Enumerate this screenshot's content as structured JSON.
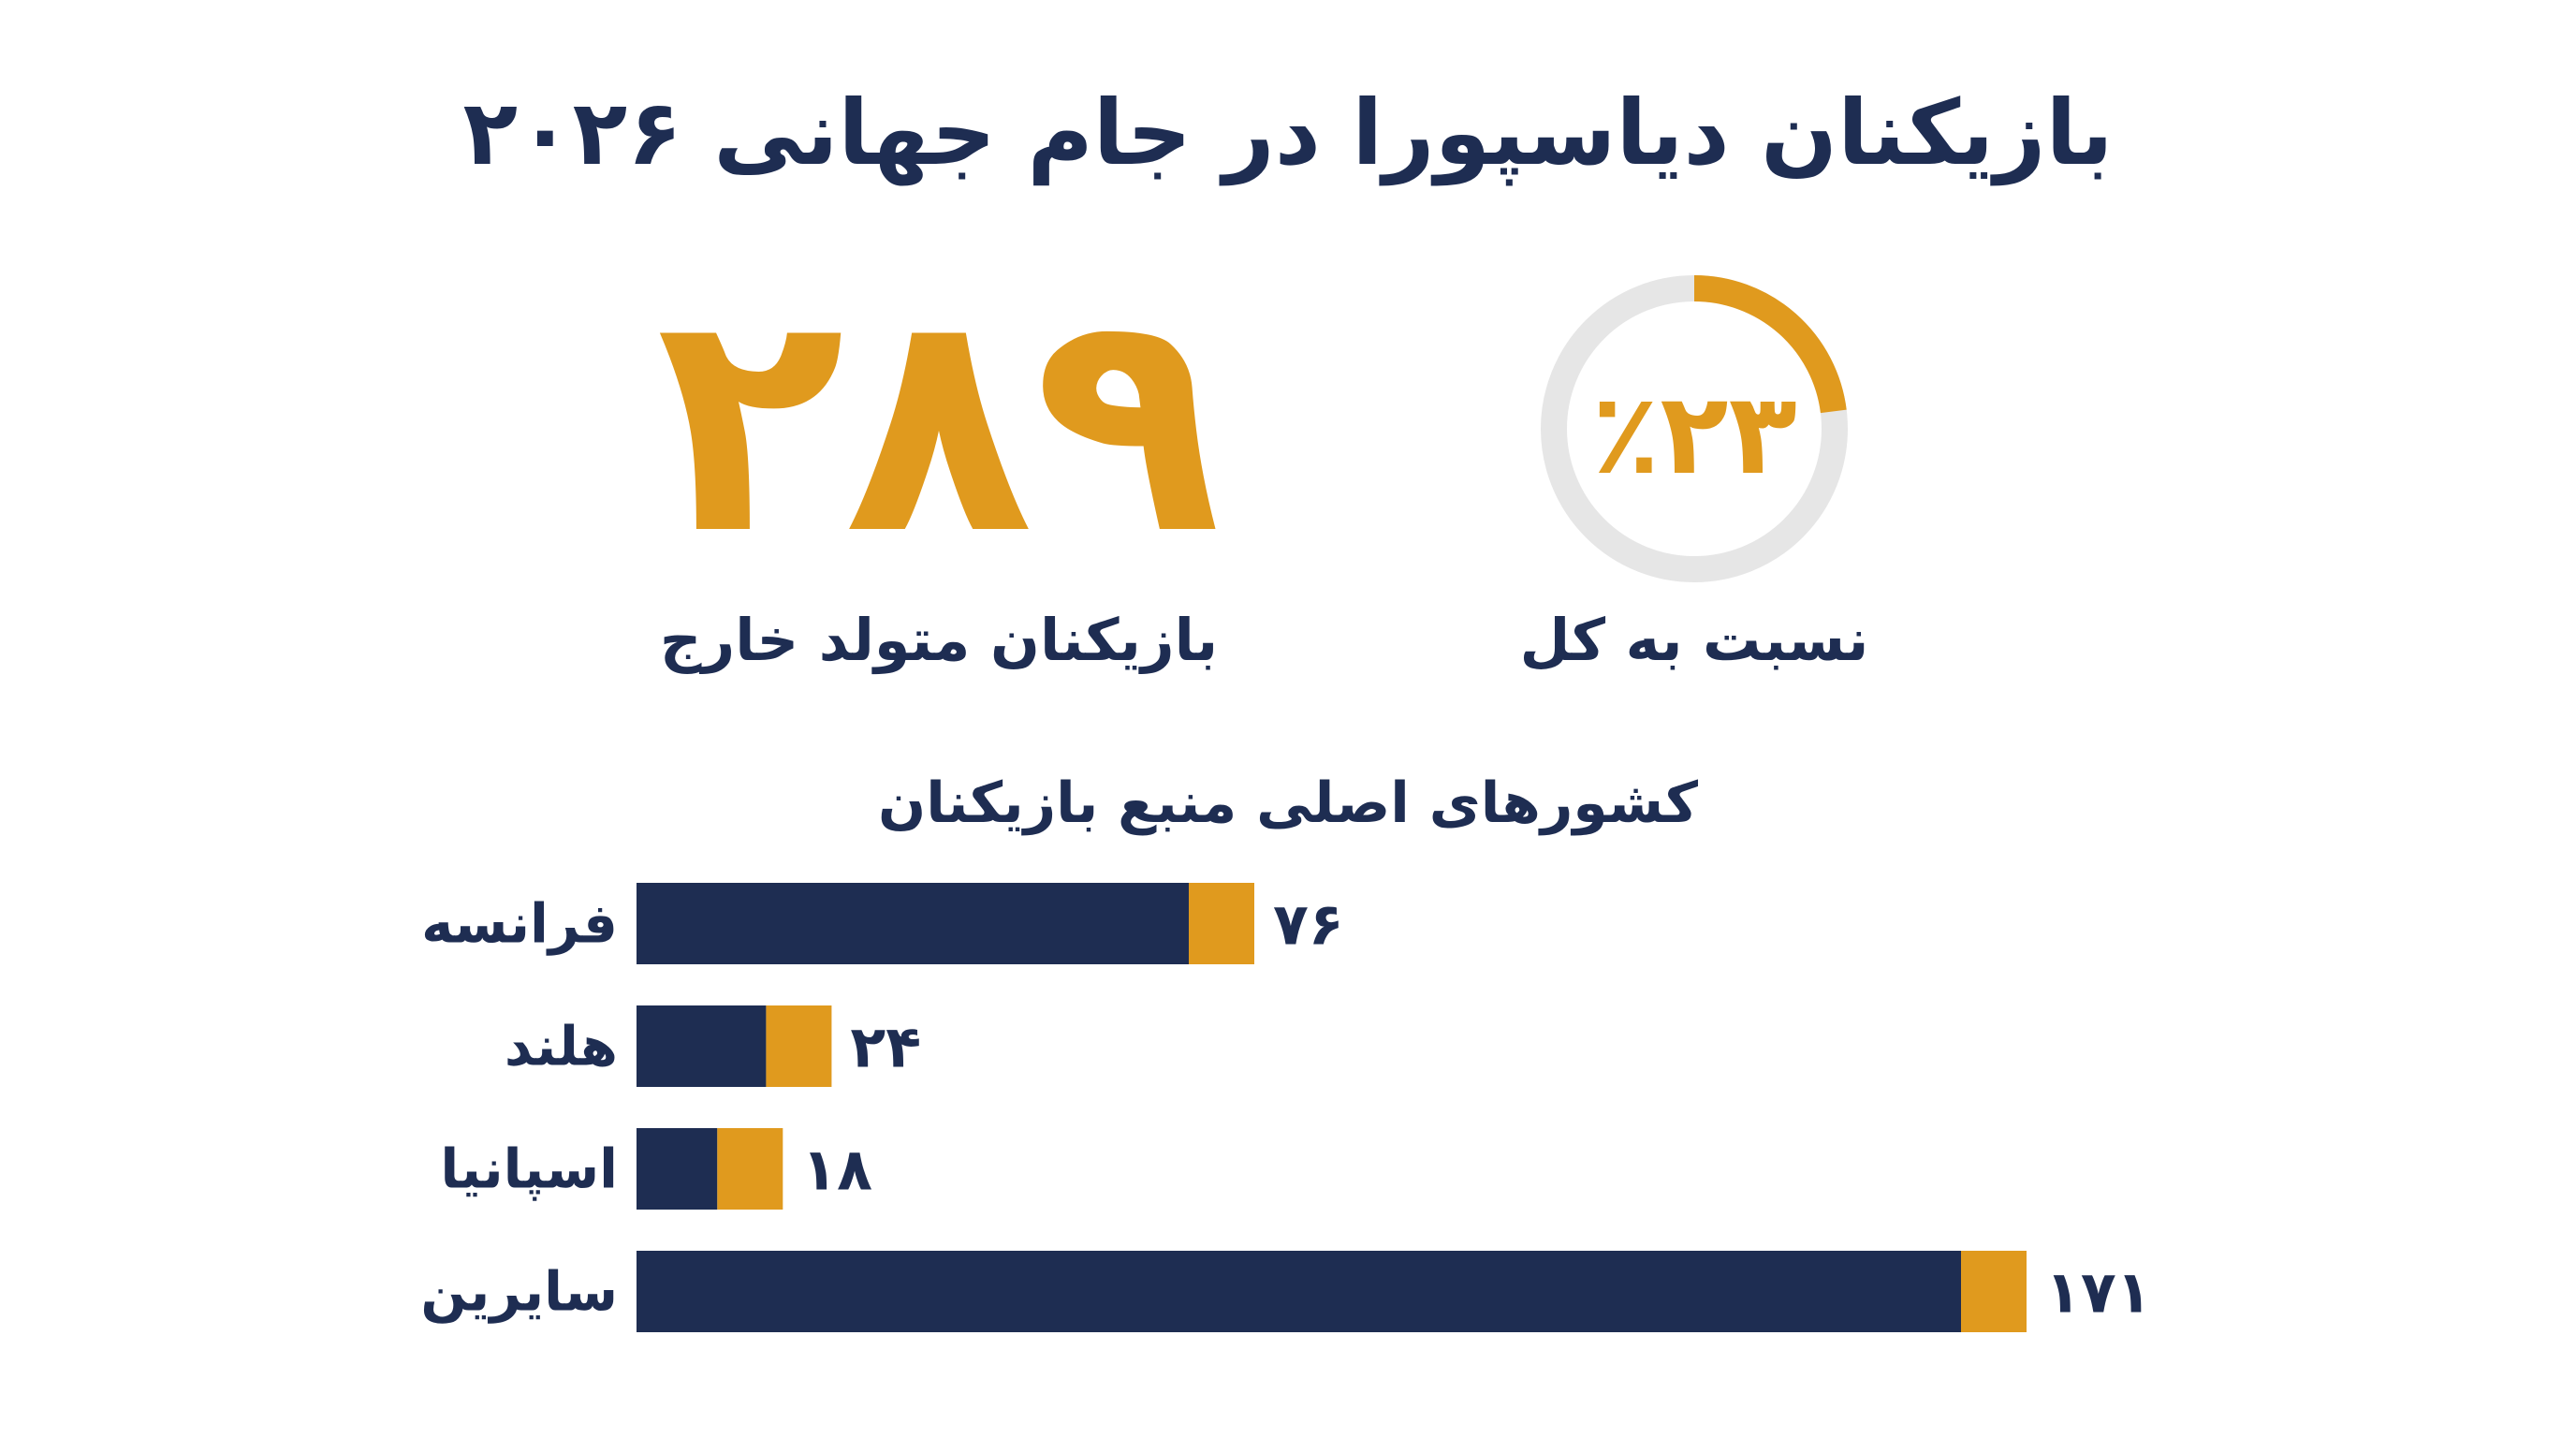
{
  "title": "بازیکنان دیاسپورا در جام جهانی ۲۰۲۶",
  "colors": {
    "navy": "#1e2d52",
    "gold": "#e09a1e",
    "track": "#e6e6e6",
    "background": "#ffffff"
  },
  "stats": {
    "foreign_born": {
      "value": "۲۸۹",
      "label": "بازیکنان متولد خارج"
    },
    "share": {
      "value_text": "٪۲۳",
      "fraction": 0.23,
      "label": "نسبت به کل"
    }
  },
  "chart_data": {
    "type": "bar",
    "orientation": "horizontal",
    "title": "کشورهای اصلی منبع بازیکنان",
    "categories": [
      "فرانسه",
      "هلند",
      "اسپانیا",
      "سایرین"
    ],
    "values": [
      76,
      24,
      18,
      171
    ],
    "value_labels": [
      "۷۶",
      "۲۴",
      "۱۸",
      "۱۷۱"
    ],
    "bar_colors": {
      "main": "#1e2d52",
      "accent": "#e09a1e"
    },
    "grid": false,
    "legend": "none"
  }
}
